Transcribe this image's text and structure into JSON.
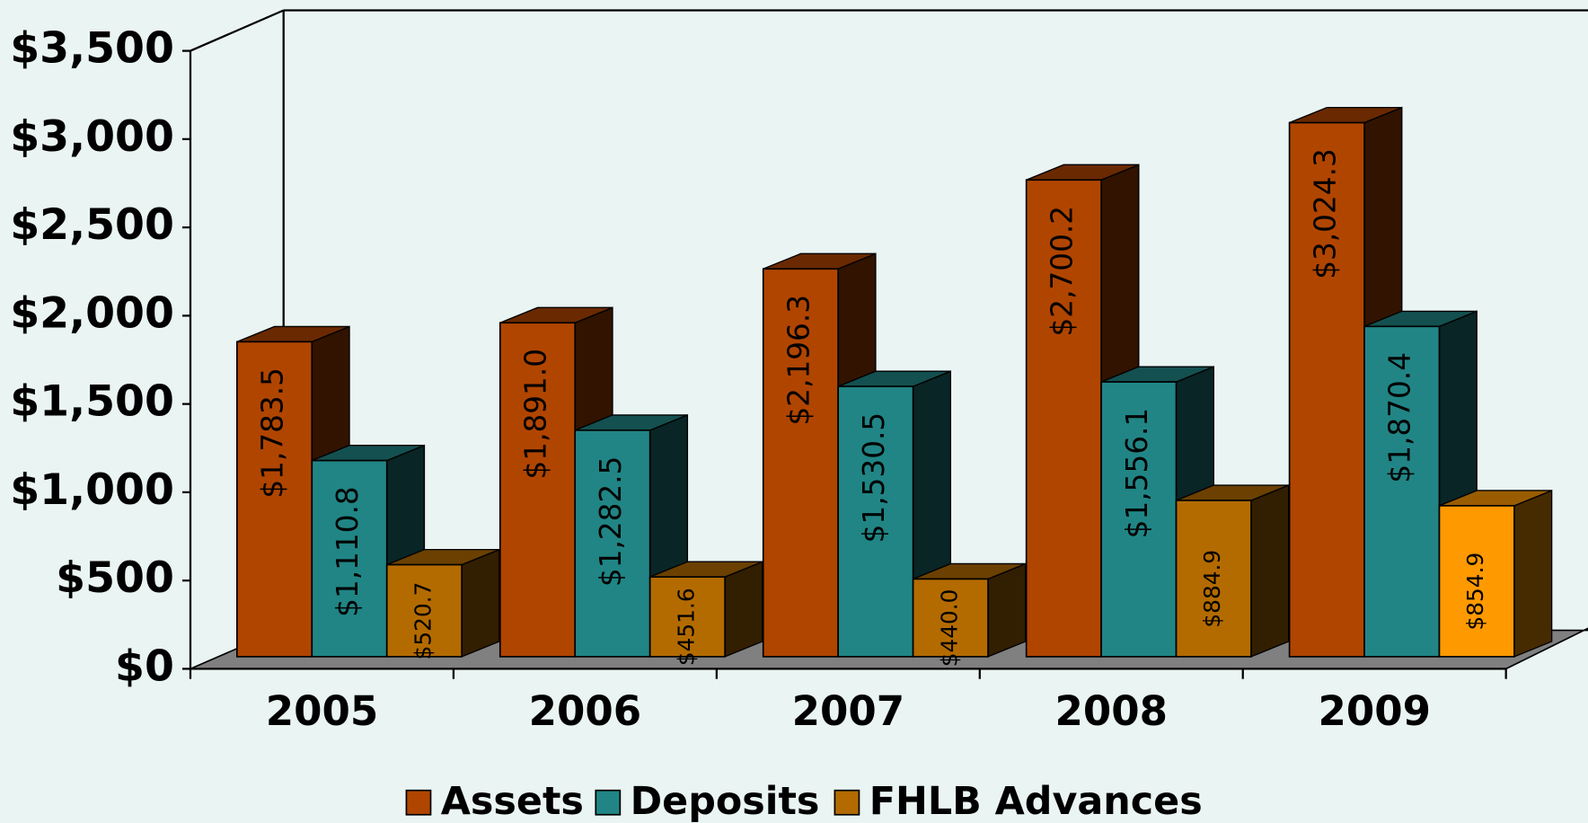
{
  "chart_data": {
    "type": "bar3d",
    "categories": [
      "2005",
      "2006",
      "2007",
      "2008",
      "2009"
    ],
    "series": [
      {
        "name": "Assets",
        "color": "#b04500",
        "values": [
          1783.5,
          1891.0,
          2196.3,
          2700.2,
          3024.3
        ],
        "value_labels": [
          "$1,783.5",
          "$1,891.0",
          "$2,196.3",
          "$2,700.2",
          "$3,024.3"
        ]
      },
      {
        "name": "Deposits",
        "color": "#218585",
        "values": [
          1110.8,
          1282.5,
          1530.5,
          1556.1,
          1870.4
        ],
        "value_labels": [
          "$1,110.8",
          "$1,282.5",
          "$1,530.5",
          "$1,556.1",
          "$1,870.4"
        ]
      },
      {
        "name": "FHLB Advances",
        "color": "#b36b00",
        "colors": [
          "#b36b00",
          "#b36b00",
          "#b36b00",
          "#b36b00",
          "#ff9900"
        ],
        "values": [
          520.7,
          451.6,
          440.0,
          884.9,
          854.9
        ],
        "value_labels": [
          "$520.7",
          "$451.6",
          "$440.0",
          "$884.9",
          "$854.9"
        ]
      }
    ],
    "ylim": [
      0,
      3500
    ],
    "yticks": [
      {
        "value": 0,
        "label": "$0"
      },
      {
        "value": 500,
        "label": "$500"
      },
      {
        "value": 1000,
        "label": "$1,000"
      },
      {
        "value": 1500,
        "label": "$1,500"
      },
      {
        "value": 2000,
        "label": "$2,000"
      },
      {
        "value": 2500,
        "label": "$2,500"
      },
      {
        "value": 3000,
        "label": "$3,000"
      },
      {
        "value": 3500,
        "label": "$3,500"
      }
    ],
    "legend": "bottom"
  }
}
